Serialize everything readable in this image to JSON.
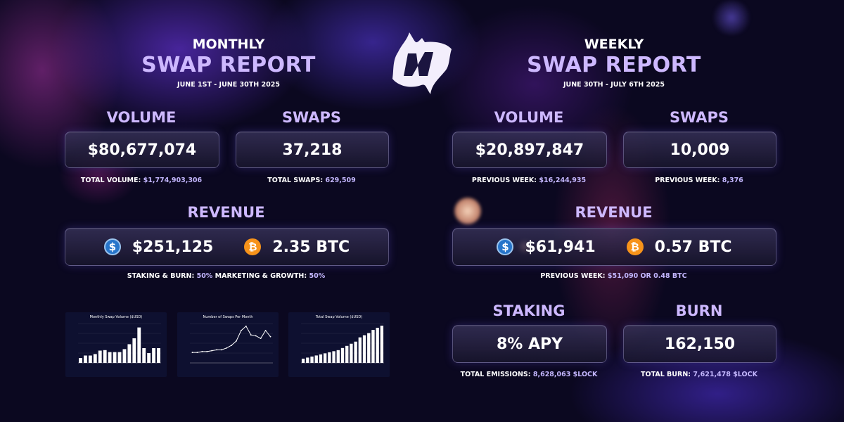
{
  "monthly": {
    "title_line1": "MONTHLY",
    "title_line2": "SWAP REPORT",
    "date_range": "JUNE 1ST - JUNE 30TH 2025",
    "volume": {
      "label": "VOLUME",
      "value": "$80,677,074",
      "sub_label": "TOTAL VOLUME:",
      "sub_value": "$1,774,903,306"
    },
    "swaps": {
      "label": "SWAPS",
      "value": "37,218",
      "sub_label": "TOTAL SWAPS:",
      "sub_value": "629,509"
    },
    "revenue": {
      "label": "REVENUE",
      "usd": "$251,125",
      "btc": "2.35 BTC",
      "split_label_1": "STAKING & BURN:",
      "split_value_1": "50%",
      "split_label_2": "MARKETING & GROWTH:",
      "split_value_2": "50%"
    }
  },
  "weekly": {
    "title_line1": "WEEKLY",
    "title_line2": "SWAP REPORT",
    "date_range": "JUNE 30TH - JULY 6TH 2025",
    "volume": {
      "label": "VOLUME",
      "value": "$20,897,847",
      "sub_label": "PREVIOUS WEEK:",
      "sub_value": "$16,244,935"
    },
    "swaps": {
      "label": "SWAPS",
      "value": "10,009",
      "sub_label": "PREVIOUS WEEK:",
      "sub_value": "8,376"
    },
    "revenue": {
      "label": "REVENUE",
      "usd": "$61,941",
      "btc": "0.57 BTC",
      "sub_label": "PREVIOUS WEEK:",
      "sub_value": "$51,090 OR 0.48 BTC"
    },
    "staking": {
      "label": "STAKING",
      "value": "8% APY",
      "sub_label": "TOTAL EMISSIONS:",
      "sub_value": "8,628,063 $LOCK"
    },
    "burn": {
      "label": "BURN",
      "value": "162,150",
      "sub_label": "TOTAL BURN:",
      "sub_value": "7,621,478 $LOCK"
    }
  },
  "icons": {
    "usdc": "usdc-coin-icon",
    "btc": "bitcoin-coin-icon",
    "logo": "brand-logo"
  },
  "colors": {
    "accent": "#cdb8ff",
    "background": "#0b0820",
    "usdc": "#2775ca",
    "btc": "#f7931a"
  },
  "chart_data": [
    {
      "type": "bar",
      "title": "Monthly Swap Volume ($USD)",
      "values": [
        10,
        15,
        15,
        18,
        25,
        26,
        22,
        22,
        22,
        28,
        38,
        50,
        72,
        30,
        20,
        30,
        30
      ],
      "ylim": [
        0,
        80
      ]
    },
    {
      "type": "line",
      "title": "Number of Swaps Per Month",
      "values": [
        12,
        12,
        13,
        13,
        14,
        15,
        15,
        17,
        20,
        25,
        37,
        42,
        32,
        31,
        28,
        37,
        30
      ],
      "ylim": [
        0,
        45
      ]
    },
    {
      "type": "bar",
      "title": "Total Swap Volume ($USD)",
      "values": [
        0.2,
        0.25,
        0.3,
        0.35,
        0.4,
        0.45,
        0.5,
        0.55,
        0.6,
        0.7,
        0.8,
        0.9,
        1.0,
        1.2,
        1.3,
        1.4,
        1.55,
        1.65,
        1.75
      ],
      "ylim": [
        0,
        1.85
      ]
    }
  ]
}
